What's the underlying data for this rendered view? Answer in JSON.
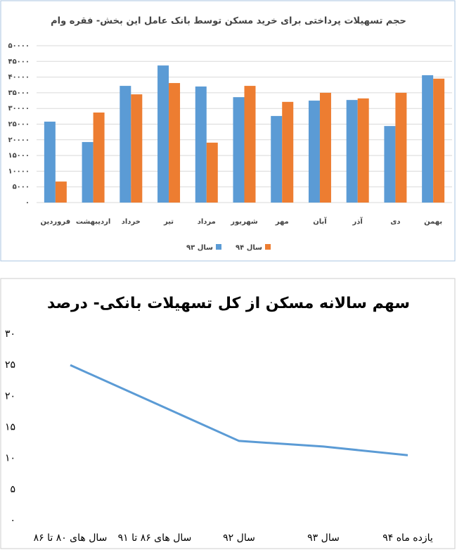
{
  "chart_data": [
    {
      "type": "bar",
      "title": "حجم تسهیلات پرداختی برای خرید مسکن توسط بانک عامل این بخش- فقره وام",
      "categories": [
        "فروردین",
        "اردیبهشت",
        "خرداد",
        "تیر",
        "مرداد",
        "شهریور",
        "مهر",
        "آبان",
        "آذر",
        "دی",
        "بهمن"
      ],
      "series": [
        {
          "name": "سال ۹۳",
          "color": "#5b9bd5",
          "values": [
            25800,
            19300,
            37200,
            43700,
            37000,
            33600,
            27600,
            32500,
            32700,
            24400,
            40600
          ]
        },
        {
          "name": "سال ۹۴",
          "color": "#ed7d31",
          "values": [
            6700,
            28700,
            34500,
            38100,
            19100,
            37200,
            32100,
            35000,
            33200,
            35000,
            39500
          ]
        }
      ],
      "ylim": [
        0,
        50000
      ],
      "yticks": [
        {
          "value": 0,
          "label": "۰"
        },
        {
          "value": 5000,
          "label": "۵۰۰۰"
        },
        {
          "value": 10000,
          "label": "۱۰۰۰۰"
        },
        {
          "value": 15000,
          "label": "۱۵۰۰۰"
        },
        {
          "value": 20000,
          "label": "۲۰۰۰۰"
        },
        {
          "value": 25000,
          "label": "۲۵۰۰۰"
        },
        {
          "value": 30000,
          "label": "۳۰۰۰۰"
        },
        {
          "value": 35000,
          "label": "۳۵۰۰۰"
        },
        {
          "value": 40000,
          "label": "۴۰۰۰۰"
        },
        {
          "value": 45000,
          "label": "۴۵۰۰۰"
        },
        {
          "value": 50000,
          "label": "۵۰۰۰۰"
        }
      ],
      "grid": true,
      "legend": "bottom"
    },
    {
      "type": "line",
      "title": "سهم سالانه مسکن از کل تسهیلات بانکی- درصد",
      "categories": [
        "سال های ۸۰ تا ۸۶",
        "سال های ۸۶ تا ۹۱",
        "سال ۹۲",
        "سال ۹۳",
        "یازده ماه ۹۴"
      ],
      "values": [
        25,
        18.9,
        12.8,
        11.9,
        10.5
      ],
      "color": "#5b9bd5",
      "ylim": [
        0,
        30
      ],
      "yticks": [
        {
          "value": 0,
          "label": "۰"
        },
        {
          "value": 5,
          "label": "۵"
        },
        {
          "value": 10,
          "label": "۱۰"
        },
        {
          "value": 15,
          "label": "۱۵"
        },
        {
          "value": 20,
          "label": "۲۰"
        },
        {
          "value": 25,
          "label": "۲۵"
        },
        {
          "value": 30,
          "label": "۳۰"
        }
      ],
      "grid": false
    }
  ]
}
